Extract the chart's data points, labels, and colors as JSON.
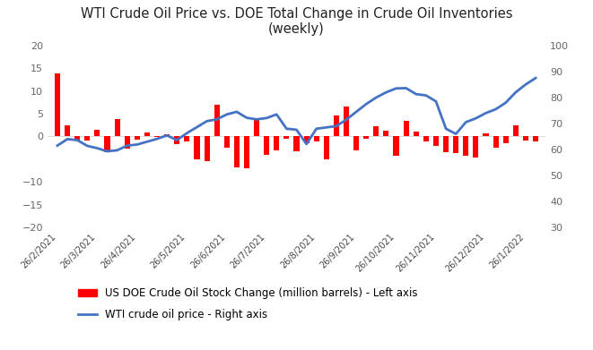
{
  "title": "WTI Crude Oil Price vs. DOE Total Change in Crude Oil Inventories\n(weekly)",
  "bar_label": "US DOE Crude Oil Stock Change (million barrels) - Left axis",
  "line_label": "WTI crude oil price - Right axis",
  "bar_color": "#FF0000",
  "line_color": "#4472C4",
  "background_color": "#FFFFFF",
  "left_ylim": [
    -20,
    20
  ],
  "right_ylim": [
    30,
    100
  ],
  "left_yticks": [
    -20,
    -15,
    -10,
    0,
    5,
    10,
    15,
    20
  ],
  "right_yticks": [
    30,
    40,
    50,
    60,
    70,
    80,
    90,
    100
  ],
  "xtick_labels": [
    "26/2/2021",
    "26/3/2021",
    "26/4/2021",
    "26/5/2021",
    "26/6/2021",
    "26/7/2021",
    "26/8/2021",
    "26/9/2021",
    "26/10/2021",
    "26/11/2021",
    "26/12/2021",
    "26/1/2022"
  ],
  "xtick_positions": [
    0,
    4,
    8,
    13,
    17,
    21,
    26,
    30,
    34,
    38,
    43,
    47
  ],
  "bar_values": [
    13.8,
    2.4,
    -0.9,
    -0.8,
    1.4,
    -3.5,
    3.9,
    -2.7,
    -0.6,
    0.9,
    -0.1,
    0.5,
    -1.7,
    -1.0,
    -5.0,
    -5.4,
    7.0,
    -2.4,
    -6.7,
    -6.9,
    4.1,
    -4.1,
    -3.0,
    -0.4,
    -3.2,
    -1.5,
    -1.0,
    -5.0,
    4.6,
    6.5,
    -3.1,
    -0.5,
    2.2,
    1.3,
    -4.3,
    3.5,
    1.0,
    -1.1,
    -2.1,
    -3.5,
    -3.6,
    -4.2,
    -4.7,
    0.7,
    -2.5,
    -1.5,
    2.5,
    -0.9,
    -1.0
  ],
  "wti_prices": [
    61.5,
    64.0,
    63.6,
    61.4,
    60.5,
    59.3,
    59.7,
    61.5,
    61.9,
    63.0,
    64.1,
    65.4,
    63.6,
    66.3,
    68.6,
    70.9,
    71.6,
    73.5,
    74.5,
    72.2,
    71.6,
    72.1,
    73.5,
    68.0,
    67.6,
    62.1,
    68.0,
    68.5,
    69.0,
    71.5,
    74.5,
    77.5,
    80.0,
    82.0,
    83.5,
    83.6,
    81.3,
    80.8,
    78.5,
    68.0,
    66.0,
    70.5,
    72.0,
    74.0,
    75.5,
    78.0,
    82.0,
    85.0,
    87.5
  ]
}
